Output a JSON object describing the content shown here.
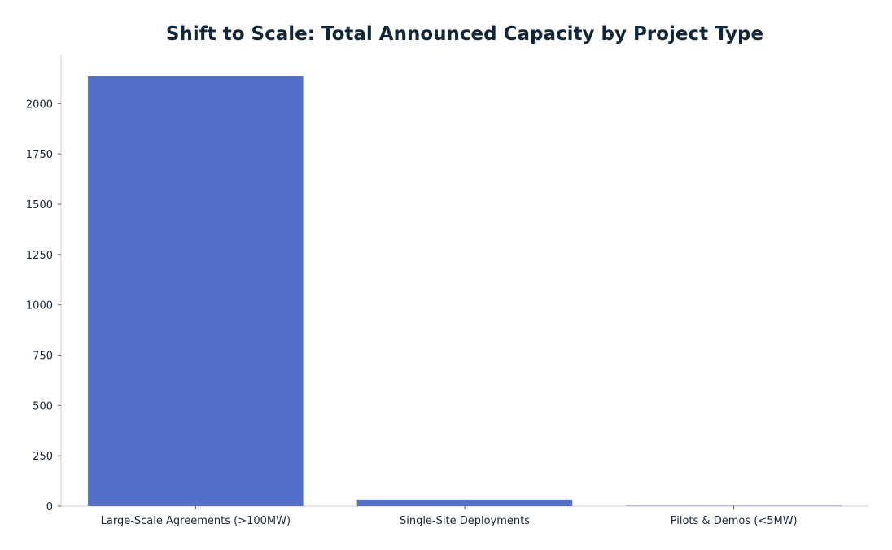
{
  "chart_data": {
    "type": "bar",
    "title": "Shift to Scale: Total Announced Capacity by Project Type",
    "xlabel": "",
    "ylabel": "",
    "categories": [
      "Large-Scale Agreements (>100MW)",
      "Single-Site Deployments",
      "Pilots & Demos (<5MW)"
    ],
    "values": [
      2135,
      33,
      2
    ],
    "ylim": [
      0,
      2240
    ],
    "yticks": [
      0,
      250,
      500,
      750,
      1000,
      1250,
      1500,
      1750,
      2000
    ],
    "grid": false,
    "bar_color": "#5470c6",
    "text_color": "#12263a"
  }
}
